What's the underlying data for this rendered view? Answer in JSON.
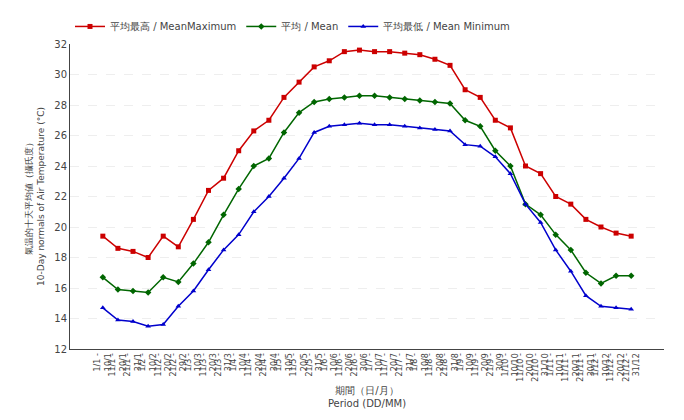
{
  "chart_data": {
    "type": "line",
    "categories": [
      "1/1 -\n10/1",
      "11/1 -\n20/1",
      "21/1 -\n31/1",
      "1/2 -\n10/2",
      "11/2 -\n20/2",
      "21/2 -\n29/2",
      "1/3 -\n10/3",
      "11/3 -\n20/3",
      "21/3 -\n31/3",
      "1/4 -\n10/4",
      "11/4 -\n20/4",
      "21/4 -\n30/4",
      "1/5 -\n10/5",
      "11/5 -\n20/5",
      "21/5 -\n31/5",
      "1/6 -\n10/6",
      "11/6 -\n20/6",
      "21/6 -\n30/6",
      "1/7 -\n10/7",
      "11/7 -\n20/7",
      "21/7 -\n31/7",
      "1/8 -\n10/8",
      "11/8 -\n20/8",
      "21/8 -\n31/8",
      "1/9 -\n10/9",
      "11/9 -\n20/9",
      "21/9 -\n30/9",
      "1/10 -\n10/10",
      "11/10 -\n20/10",
      "21/10 -\n31/10",
      "1/11 -\n10/11",
      "11/11 -\n20/11",
      "21/11 -\n30/11",
      "1/12 -\n10/12",
      "11/12 -\n20/12",
      "21/12 -\n31/12"
    ],
    "series": [
      {
        "name": "平均最高 / MeanMaximum",
        "color": "#cc0000",
        "marker": "square",
        "values": [
          19.4,
          18.6,
          18.4,
          18.0,
          19.4,
          18.7,
          20.5,
          22.4,
          23.2,
          25.0,
          26.3,
          27.0,
          28.5,
          29.5,
          30.5,
          30.9,
          31.5,
          31.6,
          31.5,
          31.5,
          31.4,
          31.3,
          31.0,
          30.6,
          29.0,
          28.5,
          27.0,
          26.5,
          24.0,
          23.5,
          22.0,
          21.5,
          20.5,
          20.0,
          19.6,
          19.4
        ]
      },
      {
        "name": "平均 / Mean",
        "color": "#006600",
        "marker": "diamond",
        "values": [
          16.7,
          15.9,
          15.8,
          15.7,
          16.7,
          16.4,
          17.6,
          19.0,
          20.8,
          22.5,
          24.0,
          24.5,
          26.2,
          27.5,
          28.2,
          28.4,
          28.5,
          28.6,
          28.6,
          28.5,
          28.4,
          28.3,
          28.2,
          28.1,
          27.0,
          26.6,
          25.0,
          24.0,
          21.5,
          20.8,
          19.5,
          18.5,
          17.0,
          16.3,
          16.8,
          16.8
        ]
      },
      {
        "name": "平均最低 / Mean Minimum",
        "color": "#0000cc",
        "marker": "triangle-up",
        "values": [
          14.7,
          13.9,
          13.8,
          13.5,
          13.6,
          14.8,
          15.8,
          17.2,
          18.5,
          19.5,
          21.0,
          22.0,
          23.2,
          24.5,
          26.2,
          26.6,
          26.7,
          26.8,
          26.7,
          26.7,
          26.6,
          26.5,
          26.4,
          26.3,
          25.4,
          25.3,
          24.6,
          23.5,
          21.5,
          20.3,
          18.5,
          17.1,
          15.5,
          14.8,
          14.7,
          14.6
        ]
      }
    ],
    "xlabel": "期間（日/月）\nPeriod (DD/MM)",
    "ylabel": "氣温的十天平均値（攝氏度）\n10-Day normals of Air Temperature (°C)",
    "ylim": [
      12,
      32
    ],
    "yticks": [
      12,
      14,
      16,
      18,
      20,
      22,
      24,
      26,
      28,
      30,
      32
    ],
    "grid": true,
    "legend": "upper left"
  }
}
